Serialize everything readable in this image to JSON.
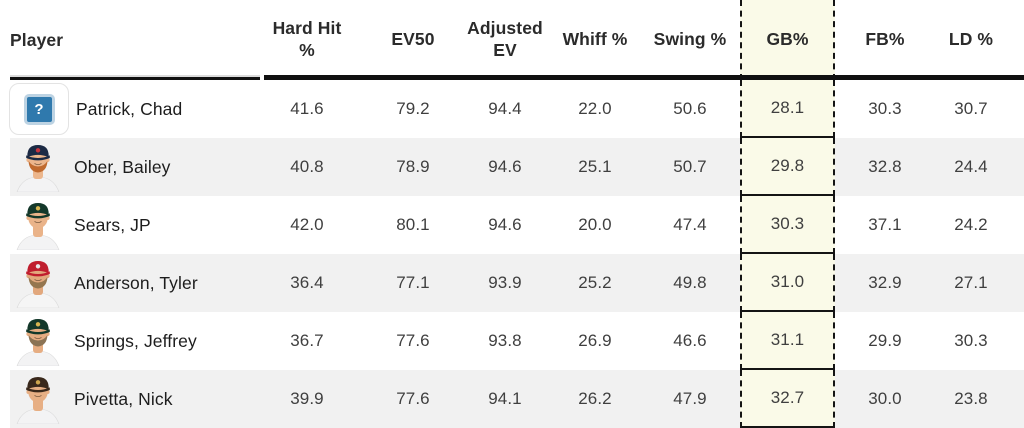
{
  "table": {
    "player_column_label": "Player",
    "highlight_index": 5,
    "columns": [
      {
        "key": "hard-hit-pct",
        "label": "Hard Hit %"
      },
      {
        "key": "ev50",
        "label": "EV50"
      },
      {
        "key": "adjusted-ev",
        "label": "Adjusted EV"
      },
      {
        "key": "whiff-pct",
        "label": "Whiff %"
      },
      {
        "key": "swing-pct",
        "label": "Swing %"
      },
      {
        "key": "gb-pct",
        "label": "GB%"
      },
      {
        "key": "fb-pct",
        "label": "FB%"
      },
      {
        "key": "ld-pct",
        "label": "LD %"
      }
    ],
    "rows": [
      {
        "name": "Patrick, Chad",
        "avatar": {
          "type": "placeholder",
          "badge": "?",
          "badge_bg": "#2f79ad",
          "badge_border": "#bdd3e3"
        },
        "stats": [
          "41.6",
          "79.2",
          "94.4",
          "22.0",
          "50.6",
          "28.1",
          "30.3",
          "30.7"
        ]
      },
      {
        "name": "Ober, Bailey",
        "avatar": {
          "type": "photo",
          "team": "minnesota-twins",
          "cap": "#1c2a44",
          "logo": "#c8333d",
          "skin": "#ecb68c",
          "beard": "#c06a2e",
          "jersey": "#f3f3f4"
        },
        "stats": [
          "40.8",
          "78.9",
          "94.6",
          "25.1",
          "50.7",
          "29.8",
          "32.8",
          "24.4"
        ]
      },
      {
        "name": "Sears, JP",
        "avatar": {
          "type": "photo",
          "team": "athletics",
          "cap": "#14382a",
          "logo": "#d8b550",
          "skin": "#eab389",
          "beard": "",
          "jersey": "#f3f3f4"
        },
        "stats": [
          "42.0",
          "80.1",
          "94.6",
          "20.0",
          "47.4",
          "30.3",
          "37.1",
          "24.2"
        ]
      },
      {
        "name": "Anderson, Tyler",
        "avatar": {
          "type": "photo",
          "team": "la-angels",
          "cap": "#c01e2e",
          "logo": "#e8e8ea",
          "skin": "#e2a87d",
          "beard": "#95764f",
          "jersey": "#f5f5f5"
        },
        "stats": [
          "36.4",
          "77.1",
          "93.9",
          "25.2",
          "49.8",
          "31.0",
          "32.9",
          "27.1"
        ]
      },
      {
        "name": "Springs, Jeffrey",
        "avatar": {
          "type": "photo",
          "team": "athletics",
          "cap": "#14382a",
          "logo": "#d8b550",
          "skin": "#e6ad82",
          "beard": "#8b7354",
          "jersey": "#f3f3f4"
        },
        "stats": [
          "36.7",
          "77.6",
          "93.8",
          "26.9",
          "46.6",
          "31.1",
          "29.9",
          "30.3"
        ]
      },
      {
        "name": "Pivetta, Nick",
        "avatar": {
          "type": "photo",
          "team": "san-diego-padres",
          "cap": "#39281b",
          "logo": "#cfa64e",
          "skin": "#e7af84",
          "beard": "",
          "jersey": "#f3f3f4"
        },
        "stats": [
          "39.9",
          "77.6",
          "94.1",
          "26.2",
          "47.9",
          "32.7",
          "30.0",
          "23.8"
        ]
      }
    ]
  },
  "colors": {
    "highlight_bg": "#fafae8",
    "highlight_border": "#141414",
    "stripe": "#f1f1f1",
    "header_rule": "#101010",
    "header_text": "#2b2b2b",
    "value_text": "#3f3f3f",
    "name_text": "#1d1d1d"
  }
}
